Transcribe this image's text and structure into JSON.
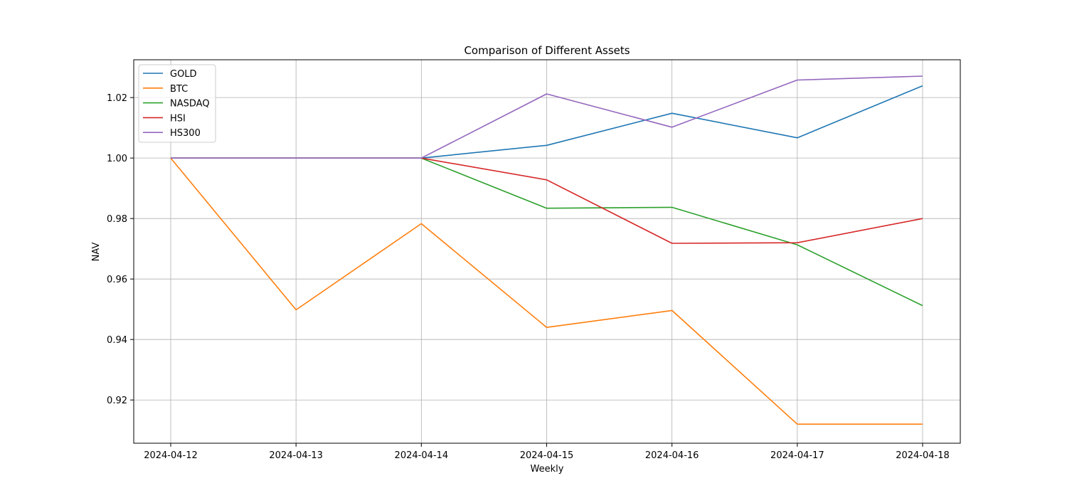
{
  "chart_data": {
    "type": "line",
    "title": "Comparison of Different Assets",
    "xlabel": "Weekly",
    "ylabel": "NAV",
    "categories": [
      "2024-04-12",
      "2024-04-13",
      "2024-04-14",
      "2024-04-15",
      "2024-04-16",
      "2024-04-17",
      "2024-04-18"
    ],
    "ylim": [
      0.9057,
      1.0325
    ],
    "yticks": [
      0.92,
      0.94,
      0.96,
      0.98,
      1.0,
      1.02
    ],
    "ytick_labels": [
      "0.92",
      "0.94",
      "0.96",
      "0.98",
      "1.00",
      "1.02"
    ],
    "grid": true,
    "legend_position": "top-left",
    "series": [
      {
        "name": "GOLD",
        "color": "#1f77b4",
        "values": [
          1.0,
          1.0,
          1.0,
          1.0042,
          1.0148,
          1.0067,
          1.0239
        ]
      },
      {
        "name": "BTC",
        "color": "#ff7f0e",
        "values": [
          1.0,
          0.9498,
          0.9783,
          0.944,
          0.9496,
          0.912,
          0.912
        ]
      },
      {
        "name": "NASDAQ",
        "color": "#2ca02c",
        "values": [
          1.0,
          1.0,
          1.0,
          0.9834,
          0.9837,
          0.9713,
          0.9512
        ]
      },
      {
        "name": "HSI",
        "color": "#d62728",
        "values": [
          1.0,
          1.0,
          1.0,
          0.9928,
          0.9718,
          0.972,
          0.98
        ]
      },
      {
        "name": "HS300",
        "color": "#9467bd",
        "values": [
          1.0,
          1.0,
          1.0,
          1.0212,
          1.0102,
          1.0258,
          1.0271
        ]
      }
    ]
  }
}
